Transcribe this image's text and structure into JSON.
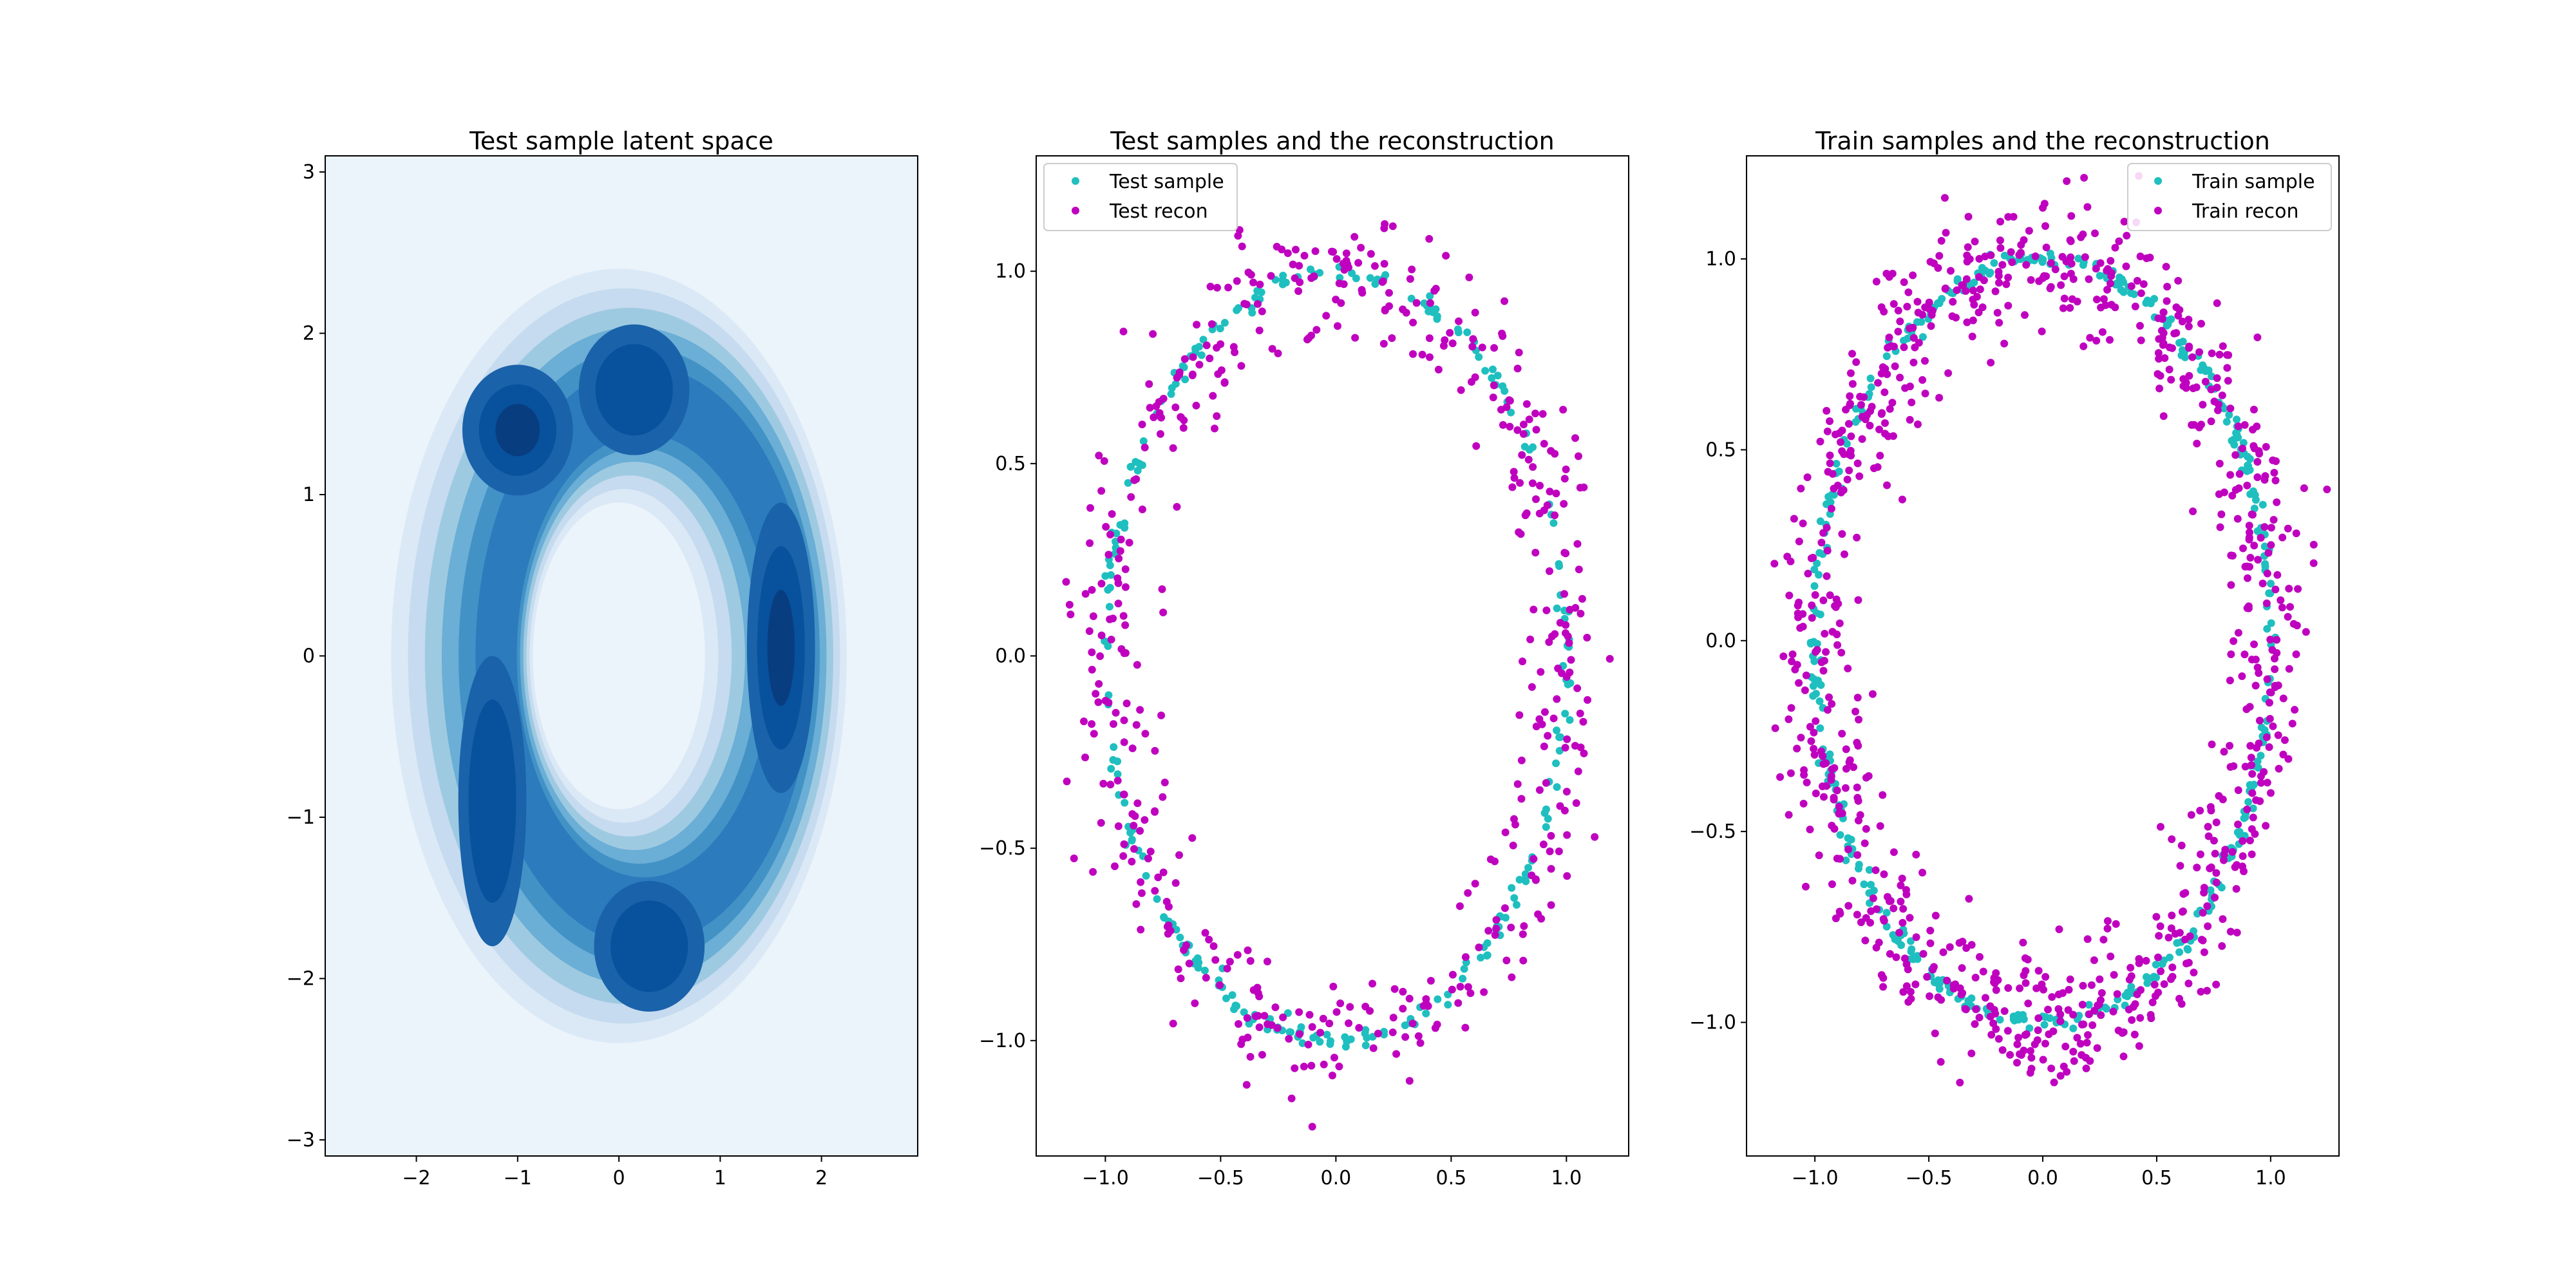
{
  "chart_data": [
    {
      "type": "contour",
      "title": "Test sample latent space",
      "xlabel": "",
      "ylabel": "",
      "xlim": [
        -2.9,
        2.95
      ],
      "ylim": [
        -3.1,
        3.1
      ],
      "xticks": [
        -2,
        -1,
        0,
        1,
        2
      ],
      "yticks": [
        -3,
        -2,
        -1,
        0,
        1,
        2,
        3
      ],
      "xtick_labels": [
        "−2",
        "−1",
        "0",
        "1",
        "2"
      ],
      "ytick_labels": [
        "−3",
        "−2",
        "−1",
        "0",
        "1",
        "2",
        "3"
      ],
      "colormap": "Blues",
      "background_color": "#ebf3fb",
      "level_colors": [
        "#dbe9f6",
        "#c6dbef",
        "#9ecae1",
        "#6baed6",
        "#4292c6",
        "#2c7bbd",
        "#1a62aa",
        "#08519c",
        "#083d7f"
      ],
      "ring": {
        "center": [
          0,
          0
        ],
        "outer_radius_x": 2.25,
        "outer_radius_y": 2.4,
        "inner_radius_x": 0.85,
        "inner_radius_y": 0.95
      },
      "density_peaks": [
        {
          "x": 1.6,
          "y": 0.05,
          "strength": 1.0
        },
        {
          "x": -1.0,
          "y": 1.4,
          "strength": 0.9
        },
        {
          "x": -1.25,
          "y": -0.9,
          "strength": 0.75
        },
        {
          "x": 0.15,
          "y": 1.65,
          "strength": 0.55
        },
        {
          "x": 0.3,
          "y": -1.8,
          "strength": 0.5
        }
      ],
      "grid": false,
      "legend": null
    },
    {
      "type": "scatter",
      "title": "Test samples and the reconstruction",
      "xlabel": "",
      "ylabel": "",
      "xlim": [
        -1.3,
        1.27
      ],
      "ylim": [
        -1.3,
        1.3
      ],
      "xticks": [
        -1.0,
        -0.5,
        0.0,
        0.5,
        1.0
      ],
      "yticks": [
        -1.0,
        -0.5,
        0.0,
        0.5,
        1.0
      ],
      "xtick_labels": [
        "−1.0",
        "−0.5",
        "0.0",
        "0.5",
        "1.0"
      ],
      "ytick_labels": [
        "−1.0",
        "−0.5",
        "0.0",
        "0.5",
        "1.0"
      ],
      "grid": false,
      "legend": "top-left",
      "series": [
        {
          "name": "Test sample",
          "color": "#1fbfbf",
          "pattern": "unit-circle",
          "count": 250,
          "noise": 0.012
        },
        {
          "name": "Test recon",
          "color": "#bf00bf",
          "pattern": "noisy-unit-circle",
          "count": 500,
          "noise": 0.09
        }
      ]
    },
    {
      "type": "scatter",
      "title": "Train samples and the reconstruction",
      "xlabel": "",
      "ylabel": "",
      "xlim": [
        -1.3,
        1.3
      ],
      "ylim": [
        -1.35,
        1.27
      ],
      "xticks": [
        -1.0,
        -0.5,
        0.0,
        0.5,
        1.0
      ],
      "yticks": [
        -1.0,
        -0.5,
        0.0,
        0.5,
        1.0
      ],
      "xtick_labels": [
        "−1.0",
        "−0.5",
        "0.0",
        "0.5",
        "1.0"
      ],
      "ytick_labels": [
        "−1.0",
        "−0.5",
        "0.0",
        "0.5",
        "1.0"
      ],
      "grid": false,
      "legend": "top-right",
      "series": [
        {
          "name": "Train sample",
          "color": "#1fbfbf",
          "pattern": "unit-circle",
          "count": 400,
          "noise": 0.012
        },
        {
          "name": "Train recon",
          "color": "#bf00bf",
          "pattern": "noisy-unit-circle",
          "count": 900,
          "noise": 0.09
        }
      ]
    }
  ]
}
